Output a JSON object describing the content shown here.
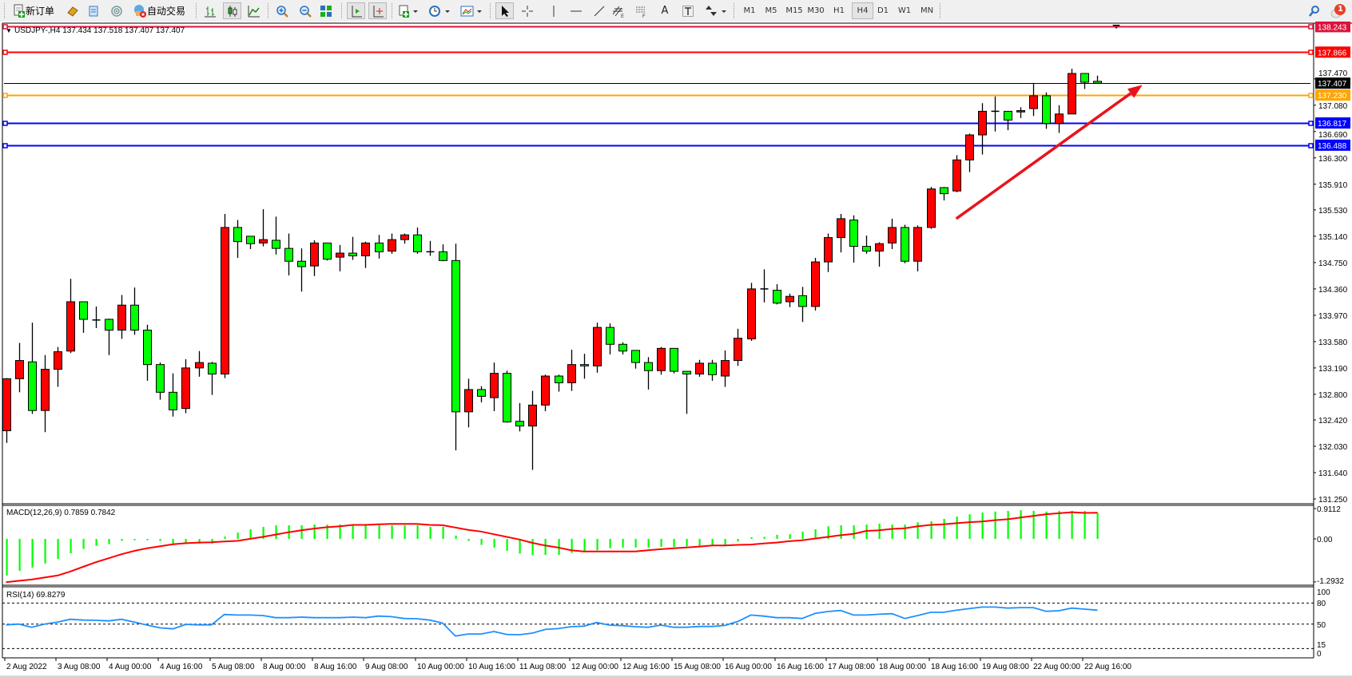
{
  "toolbar": {
    "new_order_label": "新订单",
    "auto_trading_label": "自动交易",
    "timeframes": [
      "M1",
      "M5",
      "M15",
      "M30",
      "H1",
      "H4",
      "D1",
      "W1",
      "MN"
    ],
    "active_timeframe": "H4",
    "notification_count": "1",
    "icons": [
      "new-order-icon",
      "gold-icon",
      "data-window-icon",
      "signals-icon",
      "auto-trading-icon",
      "bar-chart-icon",
      "candlestick-icon",
      "line-chart-icon",
      "zoom-in-icon",
      "zoom-out-icon",
      "tile-windows-icon",
      "chart-shift-icon",
      "auto-scroll-icon",
      "indicators-icon",
      "periods-icon",
      "templates-icon",
      "cursor-icon",
      "crosshair-icon",
      "vertical-line-icon",
      "horizontal-line-icon",
      "trendline-icon",
      "channel-icon",
      "fibonacci-icon",
      "text-icon",
      "text-label-icon",
      "arrows-icon",
      "search-icon",
      "notification-icon"
    ]
  },
  "chart_data": {
    "type": "candlestick",
    "title": "USDJPY-,H4 137.434 137.518 137.407 137.407",
    "symbol": "USDJPY-",
    "timeframe": "H4",
    "ylim": [
      131.25,
      138.243
    ],
    "colors": {
      "up": "#ff0000",
      "down": "#00ff00",
      "bid_line": "#000000"
    },
    "price_ticks": [
      "137.470",
      "137.080",
      "136.690",
      "136.300",
      "135.910",
      "135.530",
      "135.140",
      "134.750",
      "134.360",
      "133.970",
      "133.580",
      "133.190",
      "132.800",
      "132.420",
      "132.030",
      "131.640",
      "131.250"
    ],
    "levels": [
      {
        "price": 138.243,
        "label": "138.243",
        "color": "#dc143c"
      },
      {
        "price": 137.866,
        "label": "137.866",
        "color": "#ff0000"
      },
      {
        "price": 137.407,
        "label": "137.407",
        "color": "#000000"
      },
      {
        "price": 137.23,
        "label": "137.230",
        "color": "#ffa500"
      },
      {
        "price": 136.817,
        "label": "136.817",
        "color": "#0000ff"
      },
      {
        "price": 136.488,
        "label": "136.488",
        "color": "#0000ff"
      }
    ],
    "arrow": {
      "from": {
        "time": "19 Aug 00:00",
        "price": 135.4
      },
      "to": {
        "time": "23 Aug 10:00",
        "price": 137.38
      },
      "color": "#e8141c"
    },
    "time_labels": [
      "2 Aug 2022",
      "3 Aug 08:00",
      "4 Aug 00:00",
      "4 Aug 16:00",
      "5 Aug 08:00",
      "8 Aug 00:00",
      "8 Aug 16:00",
      "9 Aug 08:00",
      "10 Aug 00:00",
      "10 Aug 16:00",
      "11 Aug 08:00",
      "12 Aug 00:00",
      "12 Aug 16:00",
      "15 Aug 08:00",
      "16 Aug 00:00",
      "16 Aug 16:00",
      "17 Aug 08:00",
      "18 Aug 00:00",
      "18 Aug 16:00",
      "19 Aug 08:00",
      "22 Aug 00:00",
      "22 Aug 16:00"
    ],
    "candle_fields": [
      "time",
      "open",
      "high",
      "low",
      "close"
    ],
    "candles": [
      [
        "2 Aug 16:00",
        132.26,
        133.04,
        132.08,
        133.03
      ],
      [
        "2 Aug 20:00",
        133.03,
        133.56,
        132.83,
        133.3
      ],
      [
        "3 Aug 00:00",
        133.28,
        133.86,
        132.51,
        132.56
      ],
      [
        "3 Aug 04:00",
        132.56,
        133.38,
        132.24,
        133.17
      ],
      [
        "3 Aug 08:00",
        133.17,
        133.5,
        132.91,
        133.43
      ],
      [
        "3 Aug 12:00",
        133.44,
        134.51,
        133.41,
        134.17
      ],
      [
        "3 Aug 16:00",
        134.17,
        134.17,
        133.71,
        133.91
      ],
      [
        "3 Aug 20:00",
        133.9,
        134.1,
        133.78,
        133.9
      ],
      [
        "4 Aug 00:00",
        133.91,
        133.92,
        133.38,
        133.75
      ],
      [
        "4 Aug 04:00",
        133.75,
        134.27,
        133.62,
        134.12
      ],
      [
        "4 Aug 08:00",
        134.12,
        134.38,
        133.68,
        133.75
      ],
      [
        "4 Aug 12:00",
        133.75,
        133.83,
        133.0,
        133.24
      ],
      [
        "4 Aug 16:00",
        133.24,
        133.27,
        132.72,
        132.83
      ],
      [
        "4 Aug 20:00",
        132.83,
        133.11,
        132.47,
        132.57
      ],
      [
        "5 Aug 00:00",
        132.59,
        133.32,
        132.52,
        133.19
      ],
      [
        "5 Aug 04:00",
        133.19,
        133.44,
        133.06,
        133.27
      ],
      [
        "5 Aug 08:00",
        133.26,
        133.28,
        132.79,
        133.1
      ],
      [
        "5 Aug 12:00",
        133.1,
        135.47,
        133.04,
        135.27
      ],
      [
        "5 Aug 16:00",
        135.27,
        135.38,
        134.82,
        135.06
      ],
      [
        "5 Aug 20:00",
        135.14,
        135.14,
        134.95,
        135.03
      ],
      [
        "8 Aug 00:00",
        135.04,
        135.54,
        134.99,
        135.09
      ],
      [
        "8 Aug 04:00",
        135.08,
        135.43,
        134.87,
        134.96
      ],
      [
        "8 Aug 08:00",
        134.96,
        135.18,
        134.56,
        134.77
      ],
      [
        "8 Aug 12:00",
        134.77,
        134.96,
        134.32,
        134.69
      ],
      [
        "8 Aug 16:00",
        134.7,
        135.08,
        134.55,
        135.04
      ],
      [
        "8 Aug 20:00",
        135.04,
        135.04,
        134.78,
        134.8
      ],
      [
        "9 Aug 00:00",
        134.83,
        135.01,
        134.62,
        134.89
      ],
      [
        "9 Aug 04:00",
        134.89,
        135.13,
        134.79,
        134.85
      ],
      [
        "9 Aug 08:00",
        134.85,
        135.06,
        134.67,
        135.04
      ],
      [
        "9 Aug 12:00",
        135.04,
        135.16,
        134.81,
        134.91
      ],
      [
        "9 Aug 16:00",
        134.92,
        135.18,
        134.88,
        135.09
      ],
      [
        "9 Aug 20:00",
        135.09,
        135.18,
        135.03,
        135.16
      ],
      [
        "10 Aug 00:00",
        135.16,
        135.27,
        134.88,
        134.91
      ],
      [
        "10 Aug 04:00",
        134.91,
        135.07,
        134.85,
        134.91
      ],
      [
        "10 Aug 08:00",
        134.91,
        135.02,
        134.77,
        134.78
      ],
      [
        "10 Aug 12:00",
        134.78,
        135.03,
        131.97,
        132.54
      ],
      [
        "10 Aug 16:00",
        132.54,
        133.03,
        132.31,
        132.87
      ],
      [
        "10 Aug 20:00",
        132.87,
        132.92,
        132.68,
        132.77
      ],
      [
        "11 Aug 00:00",
        132.75,
        133.27,
        132.55,
        133.11
      ],
      [
        "11 Aug 04:00",
        133.11,
        133.15,
        132.38,
        132.39
      ],
      [
        "11 Aug 08:00",
        132.4,
        132.67,
        132.25,
        132.33
      ],
      [
        "11 Aug 12:00",
        132.33,
        132.85,
        131.68,
        132.64
      ],
      [
        "11 Aug 16:00",
        132.64,
        133.09,
        132.55,
        133.07
      ],
      [
        "11 Aug 20:00",
        133.07,
        133.09,
        132.84,
        132.97
      ],
      [
        "12 Aug 00:00",
        132.97,
        133.46,
        132.85,
        133.24
      ],
      [
        "12 Aug 04:00",
        133.24,
        133.4,
        133.03,
        133.22
      ],
      [
        "12 Aug 08:00",
        133.22,
        133.86,
        133.12,
        133.79
      ],
      [
        "12 Aug 12:00",
        133.79,
        133.85,
        133.39,
        133.54
      ],
      [
        "12 Aug 16:00",
        133.54,
        133.57,
        133.39,
        133.44
      ],
      [
        "12 Aug 20:00",
        133.45,
        133.45,
        133.18,
        133.27
      ],
      [
        "15 Aug 00:00",
        133.27,
        133.35,
        132.87,
        133.15
      ],
      [
        "15 Aug 04:00",
        133.15,
        133.5,
        133.09,
        133.48
      ],
      [
        "15 Aug 08:00",
        133.48,
        133.48,
        133.11,
        133.14
      ],
      [
        "15 Aug 12:00",
        133.14,
        133.14,
        132.51,
        133.1
      ],
      [
        "15 Aug 16:00",
        133.1,
        133.31,
        133.06,
        133.26
      ],
      [
        "15 Aug 20:00",
        133.26,
        133.31,
        133.0,
        133.09
      ],
      [
        "16 Aug 00:00",
        133.07,
        133.45,
        132.91,
        133.3
      ],
      [
        "16 Aug 04:00",
        133.3,
        133.77,
        133.22,
        133.63
      ],
      [
        "16 Aug 08:00",
        133.62,
        134.45,
        133.59,
        134.36
      ],
      [
        "16 Aug 12:00",
        134.36,
        134.65,
        134.16,
        134.36
      ],
      [
        "16 Aug 16:00",
        134.34,
        134.43,
        134.13,
        134.15
      ],
      [
        "16 Aug 20:00",
        134.17,
        134.29,
        134.09,
        134.25
      ],
      [
        "17 Aug 00:00",
        134.26,
        134.39,
        133.87,
        134.1
      ],
      [
        "17 Aug 04:00",
        134.1,
        134.82,
        134.04,
        134.76
      ],
      [
        "17 Aug 08:00",
        134.76,
        135.18,
        134.61,
        135.12
      ],
      [
        "17 Aug 12:00",
        135.12,
        135.47,
        134.9,
        135.4
      ],
      [
        "17 Aug 16:00",
        135.38,
        135.45,
        134.75,
        134.99
      ],
      [
        "17 Aug 20:00",
        134.99,
        135.15,
        134.88,
        134.92
      ],
      [
        "18 Aug 00:00",
        134.92,
        135.05,
        134.69,
        135.03
      ],
      [
        "18 Aug 04:00",
        135.04,
        135.4,
        134.95,
        135.27
      ],
      [
        "18 Aug 08:00",
        135.27,
        135.31,
        134.74,
        134.77
      ],
      [
        "18 Aug 12:00",
        134.77,
        135.3,
        134.62,
        135.27
      ],
      [
        "18 Aug 16:00",
        135.27,
        135.87,
        135.25,
        135.84
      ],
      [
        "18 Aug 20:00",
        135.86,
        135.87,
        135.67,
        135.77
      ],
      [
        "19 Aug 00:00",
        135.81,
        136.34,
        135.79,
        136.27
      ],
      [
        "19 Aug 04:00",
        136.27,
        136.66,
        136.09,
        136.64
      ],
      [
        "19 Aug 08:00",
        136.64,
        137.11,
        136.35,
        136.99
      ],
      [
        "19 Aug 12:00",
        136.99,
        137.21,
        136.69,
        136.99
      ],
      [
        "19 Aug 16:00",
        136.99,
        136.99,
        136.71,
        136.86
      ],
      [
        "19 Aug 20:00",
        136.98,
        137.05,
        136.89,
        137.0
      ],
      [
        "22 Aug 00:00",
        137.03,
        137.41,
        136.92,
        137.22
      ],
      [
        "22 Aug 04:00",
        137.22,
        137.27,
        136.73,
        136.81
      ],
      [
        "22 Aug 08:00",
        136.81,
        137.08,
        136.67,
        136.95
      ],
      [
        "22 Aug 12:00",
        136.95,
        137.62,
        136.95,
        137.55
      ],
      [
        "22 Aug 16:00",
        137.55,
        137.55,
        137.32,
        137.42
      ],
      [
        "22 Aug 20:00",
        137.434,
        137.518,
        137.407,
        137.407
      ]
    ],
    "macd": {
      "label": "MACD(12,26,9) 0.7859 0.7842",
      "axis_labels": [
        "0.9112",
        "0.00",
        "-1.2932"
      ],
      "range": [
        -1.2932,
        0.9112
      ],
      "hist_color": "#00ff00",
      "signal_color": "#ff0000",
      "main": [
        -1.1,
        -0.96,
        -0.86,
        -0.74,
        -0.6,
        -0.43,
        -0.3,
        -0.21,
        -0.16,
        -0.06,
        -0.04,
        -0.04,
        -0.06,
        -0.14,
        -0.14,
        -0.14,
        -0.14,
        0.07,
        0.19,
        0.29,
        0.36,
        0.41,
        0.41,
        0.41,
        0.43,
        0.43,
        0.43,
        0.41,
        0.41,
        0.41,
        0.41,
        0.41,
        0.41,
        0.36,
        0.36,
        0.1,
        -0.06,
        -0.18,
        -0.26,
        -0.36,
        -0.44,
        -0.49,
        -0.48,
        -0.48,
        -0.42,
        -0.36,
        -0.34,
        -0.28,
        -0.26,
        -0.26,
        -0.26,
        -0.24,
        -0.24,
        -0.22,
        -0.22,
        -0.2,
        -0.18,
        -0.08,
        0.05,
        0.06,
        0.12,
        0.14,
        0.22,
        0.29,
        0.38,
        0.41,
        0.41,
        0.43,
        0.46,
        0.43,
        0.43,
        0.5,
        0.53,
        0.6,
        0.67,
        0.74,
        0.79,
        0.82,
        0.84,
        0.86,
        0.84,
        0.82,
        0.84,
        0.84,
        0.84,
        0.7859
      ],
      "signal": [
        -1.3,
        -1.26,
        -1.22,
        -1.16,
        -1.1,
        -0.98,
        -0.84,
        -0.7,
        -0.58,
        -0.46,
        -0.36,
        -0.28,
        -0.22,
        -0.16,
        -0.13,
        -0.11,
        -0.1,
        -0.08,
        -0.06,
        0,
        0.06,
        0.13,
        0.2,
        0.26,
        0.31,
        0.35,
        0.38,
        0.42,
        0.42,
        0.44,
        0.45,
        0.45,
        0.45,
        0.42,
        0.41,
        0.34,
        0.27,
        0.22,
        0.14,
        0.06,
        -0.02,
        -0.12,
        -0.2,
        -0.26,
        -0.34,
        -0.38,
        -0.38,
        -0.38,
        -0.38,
        -0.38,
        -0.34,
        -0.31,
        -0.28,
        -0.26,
        -0.23,
        -0.2,
        -0.2,
        -0.18,
        -0.17,
        -0.14,
        -0.11,
        -0.07,
        -0.04,
        0.01,
        0.06,
        0.11,
        0.15,
        0.24,
        0.26,
        0.3,
        0.32,
        0.38,
        0.42,
        0.44,
        0.47,
        0.5,
        0.52,
        0.56,
        0.59,
        0.64,
        0.69,
        0.74,
        0.77,
        0.8,
        0.78,
        0.7842
      ]
    },
    "rsi": {
      "label": "RSI(14) 69.8279",
      "axis_labels": [
        "100",
        "80",
        "50",
        "15",
        "0"
      ],
      "levels": [
        80,
        50,
        15
      ],
      "range": [
        0,
        100
      ],
      "color": "#1e90ff",
      "values": [
        48.9,
        50,
        45.4,
        50,
        52.7,
        56.8,
        55.7,
        55.3,
        54.6,
        56.8,
        52.7,
        48.5,
        44.7,
        43.2,
        49.6,
        48.9,
        48.9,
        63.7,
        62.9,
        62.9,
        62.2,
        59.1,
        59.1,
        59.9,
        59.1,
        59.1,
        59.1,
        59.9,
        59.1,
        61.4,
        60.6,
        58,
        57.6,
        55.7,
        51.5,
        32.9,
        35.9,
        35.9,
        39.4,
        35.2,
        34.8,
        37.1,
        42.4,
        43.5,
        46.2,
        47,
        52.3,
        48.5,
        47.7,
        46.2,
        45.4,
        48.5,
        45.4,
        45.4,
        46.6,
        46.6,
        48.1,
        53.8,
        62.9,
        61.4,
        59.1,
        59.1,
        58,
        65.2,
        67.9,
        69.4,
        62.9,
        62.9,
        64,
        64.8,
        58,
        62.2,
        66.7,
        66.7,
        69.7,
        72,
        74.3,
        74.3,
        72.8,
        73.5,
        73.5,
        68.2,
        69,
        72.8,
        71.3,
        69.8279
      ]
    }
  }
}
